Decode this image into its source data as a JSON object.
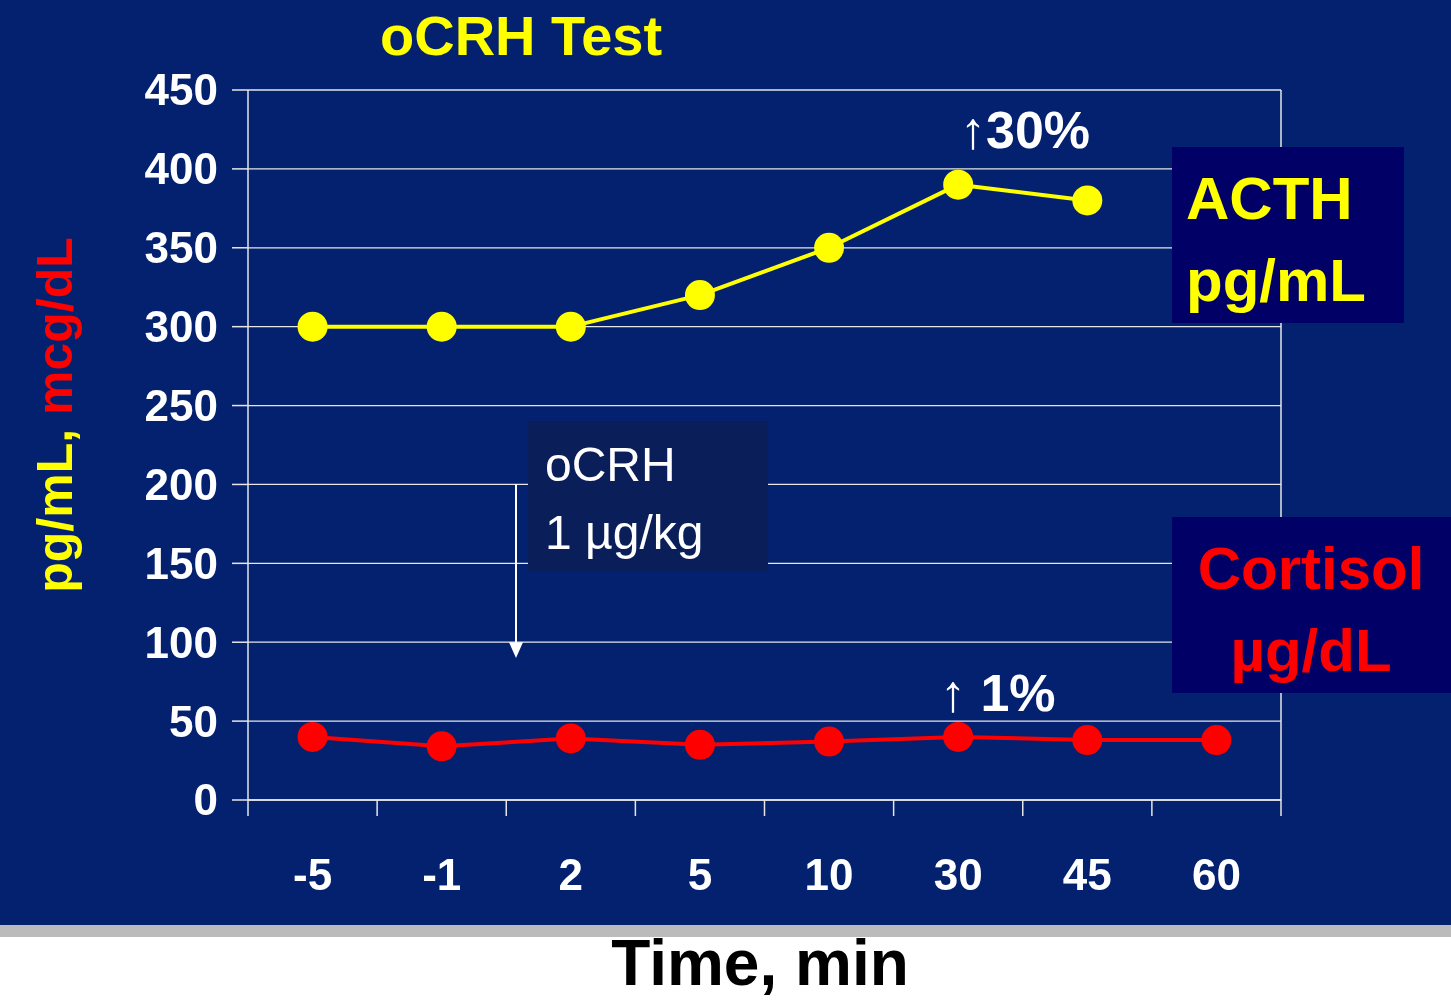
{
  "chart_data": {
    "type": "line",
    "title": "oCRH Test",
    "xlabel": "Time, min",
    "ylabel": "pg/mL, mcg/dL",
    "categories": [
      "-5",
      "-1",
      "2",
      "5",
      "10",
      "30",
      "45",
      "60"
    ],
    "series": [
      {
        "name": "ACTH pg/mL",
        "color": "#ffff00",
        "values": [
          300,
          300,
          300,
          320,
          350,
          390,
          380,
          null
        ]
      },
      {
        "name": "Cortisol µg/dL",
        "color": "#ff0000",
        "values": [
          40,
          34,
          39,
          35,
          37,
          40,
          38,
          38
        ]
      }
    ],
    "ylim": [
      0,
      450
    ],
    "yticks": [
      0,
      50,
      100,
      150,
      200,
      250,
      300,
      350,
      400,
      450
    ],
    "grid": "y",
    "marker": "circle",
    "legend": "right",
    "annotations": [
      "↑30%",
      "↑ 1%",
      "oCRH\n1 µg/kg"
    ]
  }
}
